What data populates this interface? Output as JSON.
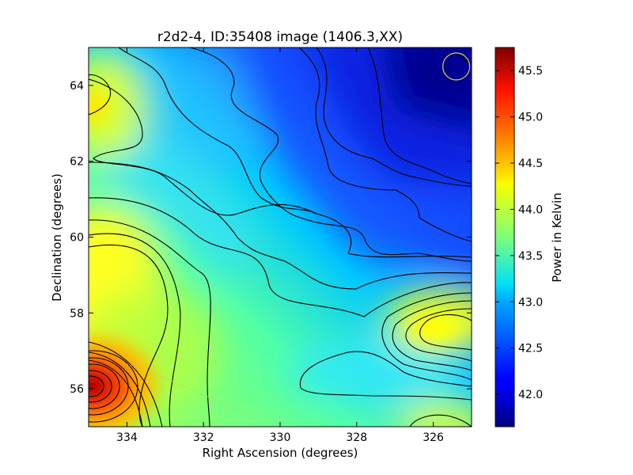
{
  "chart_data": {
    "type": "heatmap",
    "title": "r2d2-4, ID:35408 image (1406.3,XX)",
    "xlabel": "Right Ascension (degrees)",
    "ylabel": "Declination (degrees)",
    "xlim": [
      335,
      325
    ],
    "ylim": [
      55,
      65
    ],
    "x_ticks": [
      334,
      332,
      330,
      328,
      326
    ],
    "y_ticks": [
      56,
      58,
      60,
      62,
      64
    ],
    "colorbar": {
      "label": "Power in Kelvin",
      "range": [
        41.65,
        45.75
      ],
      "ticks": [
        42.0,
        42.5,
        43.0,
        43.5,
        44.0,
        44.5,
        45.0,
        45.5
      ],
      "colormap": "jet"
    },
    "hotspots": [
      {
        "ra": 335.0,
        "dec": 56.1,
        "value": 45.7
      },
      {
        "ra": 335.0,
        "dec": 58.8,
        "value": 44.1
      },
      {
        "ra": 334.8,
        "dec": 63.3,
        "value": 44.0
      },
      {
        "ra": 325.6,
        "dec": 57.5,
        "value": 44.2
      },
      {
        "ra": 325.8,
        "dec": 55.1,
        "value": 44.0
      },
      {
        "ra": 325.3,
        "dec": 64.5,
        "value": 41.7
      },
      {
        "ra": 327.0,
        "dec": 62.5,
        "value": 41.9
      }
    ],
    "beam_marker": {
      "ra": 325.4,
      "dec": 64.5,
      "color": "#d4c341"
    },
    "grid": false
  }
}
